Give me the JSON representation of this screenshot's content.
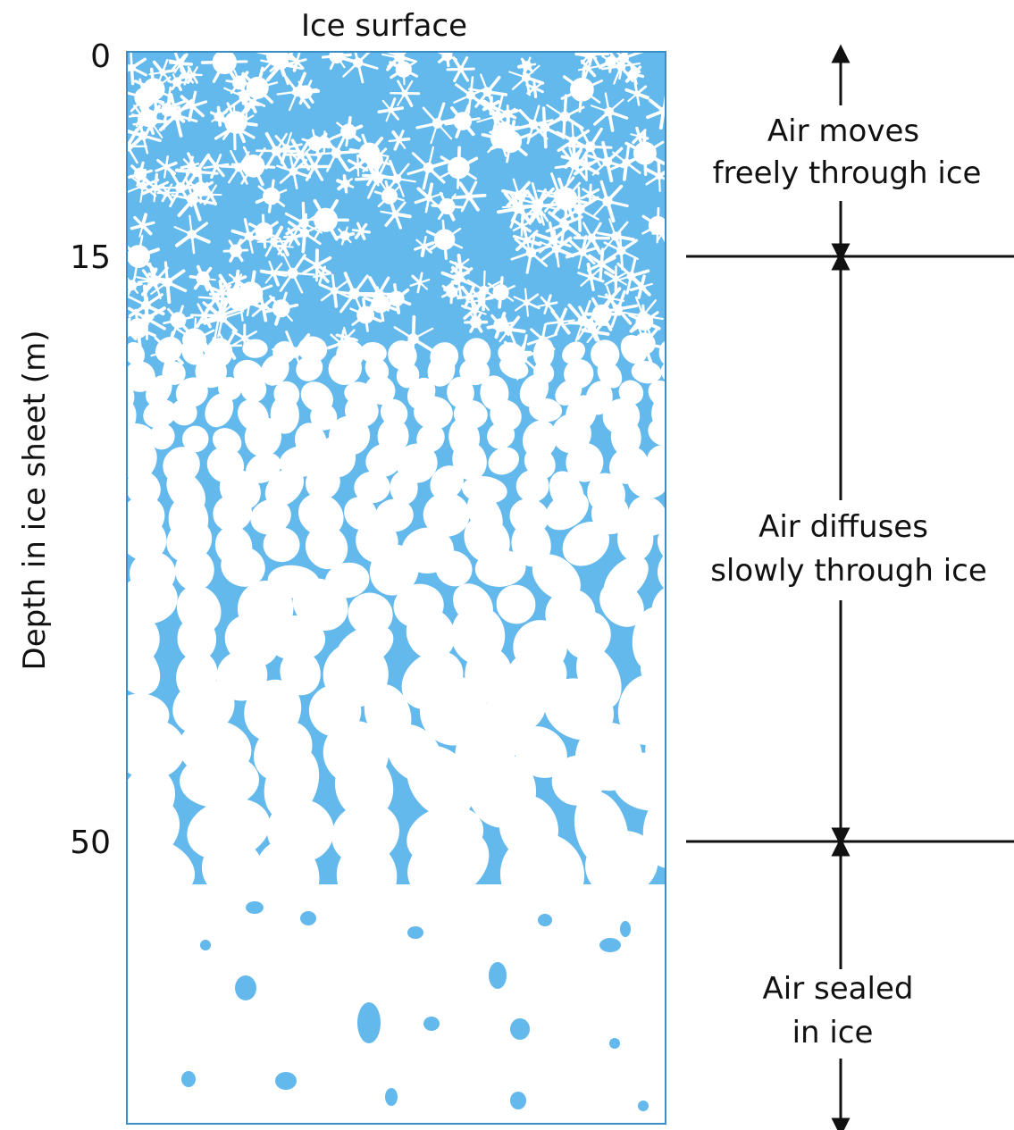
{
  "title": "Ice surface",
  "y_axis_label": "Depth in ice sheet (m)",
  "depth_ticks": [
    "0",
    "15",
    "50"
  ],
  "zones": [
    {
      "id": "free",
      "line1": "Air moves",
      "line2": "freely through ice",
      "depth_from_m": 0,
      "depth_to_m": 15
    },
    {
      "id": "diffuse",
      "line1": "Air diffuses",
      "line2": "slowly through ice",
      "depth_from_m": 15,
      "depth_to_m": 50
    },
    {
      "id": "sealed",
      "line1": "Air sealed",
      "line2": "in ice",
      "depth_from_m": 50,
      "depth_to_m": null
    }
  ],
  "colors": {
    "ice_blue": "#63b8ec",
    "ink": "#111111",
    "snow": "#ffffff"
  }
}
